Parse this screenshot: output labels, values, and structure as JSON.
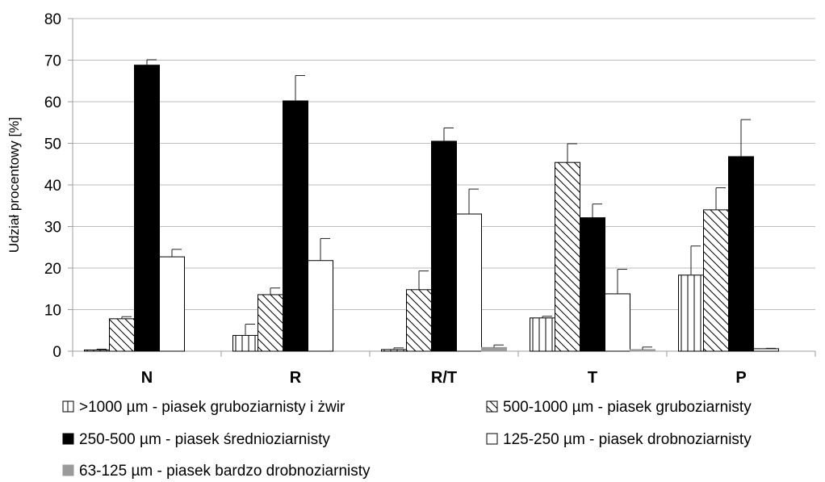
{
  "chart_data": {
    "type": "bar",
    "ylabel": "Udział procentowy [%]",
    "ylim": [
      0,
      80
    ],
    "yticks": [
      0,
      10,
      20,
      30,
      40,
      50,
      60,
      70,
      80
    ],
    "grid": true,
    "legend_position": "bottom",
    "categories": [
      "N",
      "R",
      "R/T",
      "T",
      "P"
    ],
    "series": [
      {
        "name": ">1000 µm - piasek gruboziarnisty i żwir",
        "pattern": "vertical-lines",
        "fill": "#ffffff",
        "values": [
          0.3,
          3.8,
          0.4,
          8.0,
          18.3
        ],
        "errors": [
          0.2,
          2.7,
          0.4,
          0.4,
          7.0
        ]
      },
      {
        "name": "500-1000 µm - piasek gruboziarnisty",
        "pattern": "diagonal-lines",
        "fill": "#ffffff",
        "values": [
          7.8,
          13.6,
          14.8,
          45.4,
          34.0
        ],
        "errors": [
          0.5,
          1.6,
          4.5,
          4.5,
          5.3
        ]
      },
      {
        "name": "250-500 µm - piasek średnioziarnisty",
        "pattern": "solid",
        "fill": "#000000",
        "values": [
          68.8,
          60.2,
          50.5,
          32.1,
          46.8
        ],
        "errors": [
          1.3,
          6.1,
          3.2,
          3.3,
          8.9
        ]
      },
      {
        "name": "125-250 µm - piasek drobnoziarnisty",
        "pattern": "solid",
        "fill": "#ffffff",
        "values": [
          22.7,
          21.8,
          33.0,
          13.8,
          0.6
        ],
        "errors": [
          1.8,
          5.3,
          6.0,
          5.9,
          0.1
        ]
      },
      {
        "name": "63-125 µm - piasek bardzo drobnoziarnisty",
        "pattern": "solid",
        "fill": "#9a9a9a",
        "values": [
          0.0,
          0.0,
          0.9,
          0.4,
          0.0
        ],
        "errors": [
          0.0,
          0.0,
          0.6,
          0.6,
          0.0
        ]
      }
    ]
  }
}
